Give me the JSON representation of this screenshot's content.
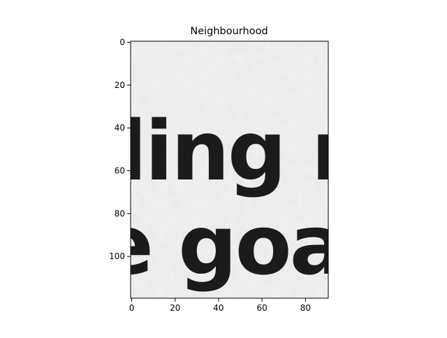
{
  "chart_data": {
    "type": "heatmap",
    "title": "Neighbourhood",
    "colormap": "gray",
    "image_content": {
      "line_1": "ding re",
      "line_2": "e goal"
    },
    "xlim": [
      -0.5,
      90.5
    ],
    "ylim": [
      119.5,
      -0.5
    ],
    "xticks": [
      0,
      20,
      40,
      60,
      80
    ],
    "yticks": [
      0,
      20,
      40,
      60,
      80,
      100
    ],
    "xlabel": "",
    "ylabel": ""
  }
}
